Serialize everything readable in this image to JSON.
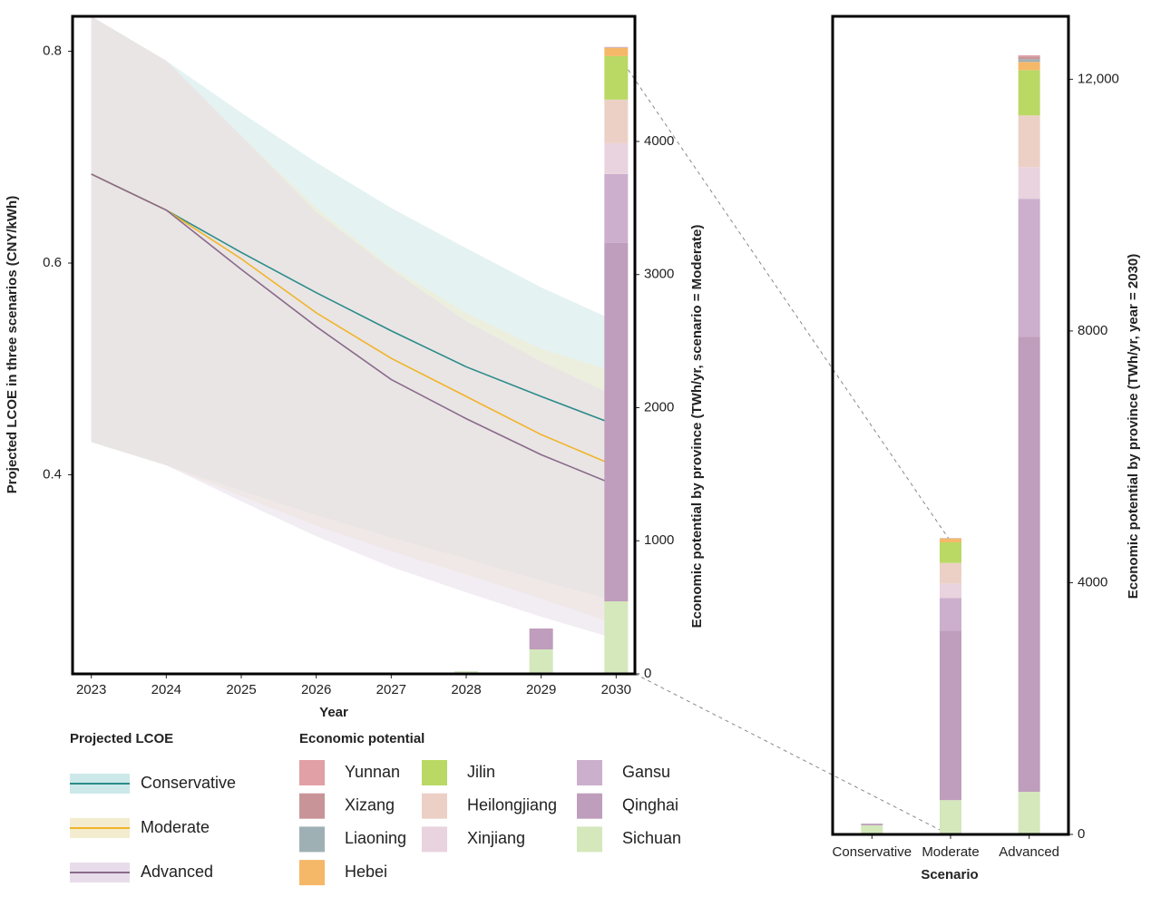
{
  "chart_data": [
    {
      "type": "line",
      "x_label": "Year",
      "y_label": "Projected LCOE in three scenarios (CNY/kWh)",
      "y2_label": "Economic potential by province (TWh/yr, scenario = Moderate)",
      "x": [
        2023,
        2024,
        2025,
        2026,
        2027,
        2028,
        2029,
        2030
      ],
      "xlim": [
        2022.75,
        2030.25
      ],
      "xticks": [
        2023,
        2024,
        2025,
        2026,
        2027,
        2028,
        2029,
        2030
      ],
      "ylim": [
        0.212,
        0.833
      ],
      "yticks": [
        0.4,
        0.6,
        0.8
      ],
      "y2lim": [
        0,
        4940
      ],
      "y2ticks": [
        0,
        1000,
        2000,
        3000,
        4000
      ],
      "legend_title": "Projected LCOE",
      "series": [
        {
          "name": "Conservative",
          "color": "#2a8c8a",
          "band_color": "#cde8e8",
          "values": [
            0.684,
            0.65,
            0.61,
            0.572,
            0.536,
            0.502,
            0.474,
            0.447
          ],
          "lower": [
            0.431,
            0.409,
            0.385,
            0.362,
            0.341,
            0.321,
            0.3,
            0.281
          ],
          "upper": [
            0.833,
            0.791,
            0.742,
            0.695,
            0.652,
            0.614,
            0.577,
            0.545
          ]
        },
        {
          "name": "Moderate",
          "color": "#f0b429",
          "band_color": "#f3ecce",
          "values": [
            0.684,
            0.65,
            0.604,
            0.553,
            0.51,
            0.474,
            0.438,
            0.408
          ],
          "lower": [
            0.431,
            0.409,
            0.38,
            0.352,
            0.328,
            0.306,
            0.283,
            0.259
          ],
          "upper": [
            0.833,
            0.791,
            0.72,
            0.652,
            0.596,
            0.553,
            0.519,
            0.497
          ]
        },
        {
          "name": "Advanced",
          "color": "#8a6a8c",
          "band_color": "#e8dcea",
          "values": [
            0.684,
            0.65,
            0.594,
            0.54,
            0.49,
            0.453,
            0.419,
            0.39
          ],
          "lower": [
            0.431,
            0.409,
            0.375,
            0.342,
            0.313,
            0.289,
            0.266,
            0.245
          ],
          "upper": [
            0.833,
            0.791,
            0.72,
            0.648,
            0.594,
            0.545,
            0.507,
            0.474
          ]
        }
      ],
      "stack_legend_title": "Economic potential",
      "stacks": [
        {
          "name": "Yunnan",
          "color": "#e0a0a6",
          "values": [
            0,
            0,
            0,
            0,
            0,
            0,
            0,
            3
          ]
        },
        {
          "name": "Xizang",
          "color": "#c99497",
          "values": [
            0,
            0,
            0,
            0,
            0,
            0,
            0,
            3
          ]
        },
        {
          "name": "Liaoning",
          "color": "#9fb0b5",
          "values": [
            0,
            0,
            0,
            0,
            0,
            0,
            0,
            2
          ]
        },
        {
          "name": "Hebei",
          "color": "#f5b869",
          "values": [
            0,
            0,
            0,
            0,
            0,
            0,
            0,
            61
          ]
        },
        {
          "name": "Jilin",
          "color": "#b9d964",
          "values": [
            0,
            0,
            0,
            0,
            0,
            0,
            0,
            327
          ]
        },
        {
          "name": "Heilongjiang",
          "color": "#ecd0c6",
          "values": [
            0,
            0,
            0,
            0,
            0,
            0,
            0,
            327
          ]
        },
        {
          "name": "Xinjiang",
          "color": "#e8d3de",
          "values": [
            0,
            0,
            0,
            0,
            0,
            0,
            0,
            232
          ]
        },
        {
          "name": "Gansu",
          "color": "#ccaecd",
          "values": [
            0,
            0,
            0,
            0,
            0,
            0,
            0,
            518
          ]
        },
        {
          "name": "Qinghai",
          "color": "#bf9dbc",
          "values": [
            0,
            0,
            0,
            0,
            0,
            0,
            157,
            2692
          ]
        },
        {
          "name": "Sichuan",
          "color": "#d4e8bc",
          "values": [
            0,
            0,
            0,
            0,
            0,
            20,
            184,
            545
          ]
        }
      ]
    },
    {
      "type": "bar",
      "x_label": "Scenario",
      "y_label": "Economic potential by province (TWh/yr, year = 2030)",
      "categories": [
        "Conservative",
        "Moderate",
        "Advanced"
      ],
      "ylim": [
        0,
        13000
      ],
      "yticks": [
        0,
        4000,
        8000,
        {
          "value": 12000,
          "label": "12,000"
        }
      ],
      "series": [
        {
          "values": [
            0,
            3,
            20
          ]
        },
        {
          "values": [
            0,
            3,
            43
          ]
        },
        {
          "values": [
            0,
            2,
            43
          ]
        },
        {
          "values": [
            0,
            61,
            130
          ]
        },
        {
          "values": [
            0,
            327,
            720
          ]
        },
        {
          "values": [
            0,
            327,
            821
          ]
        },
        {
          "values": [
            0,
            232,
            504
          ]
        },
        {
          "values": [
            8,
            518,
            2190
          ]
        },
        {
          "values": [
            20,
            2692,
            7233
          ]
        },
        {
          "values": [
            145,
            545,
            677
          ]
        }
      ]
    }
  ]
}
